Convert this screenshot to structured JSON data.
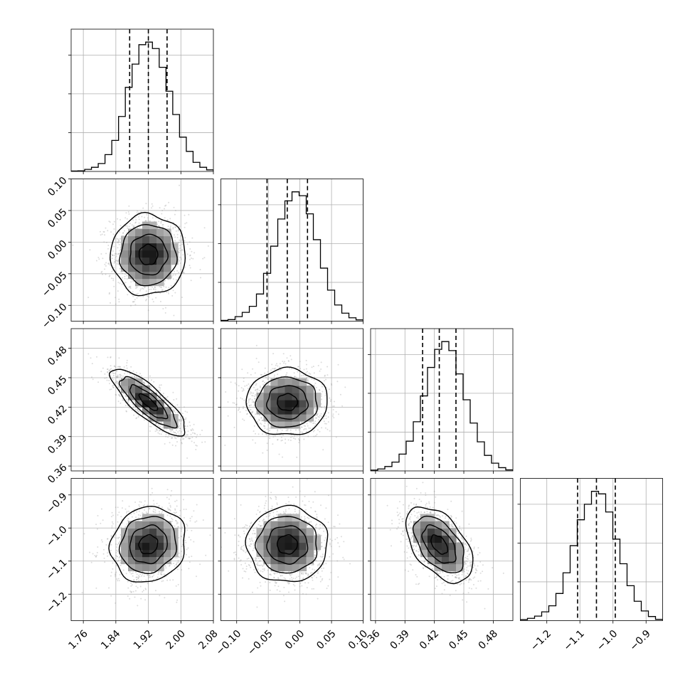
{
  "chart_data": {
    "type": "corner",
    "title": "",
    "parameters": [
      {
        "index": 0,
        "range": [
          1.73,
          2.08
        ],
        "ticks": [
          "1.76",
          "1.84",
          "1.92",
          "2.00",
          "2.08"
        ],
        "tick_values": [
          1.76,
          1.84,
          1.92,
          2.0,
          2.08
        ],
        "quantiles": [
          1.874,
          1.92,
          1.966
        ],
        "mean": 1.92,
        "std": 0.046
      },
      {
        "index": 1,
        "range": [
          -0.125,
          0.1
        ],
        "ticks": [
          "−0.10",
          "−0.05",
          "0.00",
          "0.05",
          "0.10"
        ],
        "tick_values": [
          -0.1,
          -0.05,
          0.0,
          0.05,
          0.1
        ],
        "quantiles": [
          -0.052,
          -0.02,
          0.012
        ],
        "mean": -0.02,
        "std": 0.032
      },
      {
        "index": 2,
        "range": [
          0.355,
          0.5
        ],
        "ticks": [
          "0.36",
          "0.39",
          "0.42",
          "0.45",
          "0.48"
        ],
        "tick_values": [
          0.36,
          0.39,
          0.42,
          0.45,
          0.48
        ],
        "quantiles": [
          0.408,
          0.425,
          0.442
        ],
        "mean": 0.425,
        "std": 0.017
      },
      {
        "index": 3,
        "range": [
          -1.28,
          -0.85
        ],
        "ticks": [
          "−1.2",
          "−1.1",
          "−1.0",
          "−0.9"
        ],
        "tick_values": [
          -1.2,
          -1.1,
          -1.0,
          -0.9
        ],
        "quantiles": [
          -1.107,
          -1.05,
          -0.993
        ],
        "mean": -1.05,
        "std": 0.057
      }
    ],
    "correlations": [
      [
        0,
        1,
        0.0
      ],
      [
        0,
        2,
        -0.82
      ],
      [
        0,
        3,
        0.1
      ],
      [
        1,
        2,
        0.0
      ],
      [
        1,
        3,
        0.0
      ],
      [
        2,
        3,
        -0.5
      ]
    ],
    "histograms": [
      [
        0.3,
        0.5,
        1.6,
        3.2,
        6.1,
        13.0,
        24.0,
        42.5,
        65.0,
        83.0,
        98.0,
        100.0,
        95.0,
        80.5,
        62.0,
        44.0,
        26.5,
        15.5,
        7.0,
        3.2,
        1.2
      ],
      [
        0.6,
        1.2,
        3.5,
        6.8,
        11.5,
        21.0,
        37.0,
        58.0,
        79.0,
        93.0,
        100.0,
        97.0,
        83.0,
        63.0,
        41.0,
        24.0,
        12.5,
        6.2,
        2.6,
        1.0
      ],
      [
        0.6,
        1.5,
        3.4,
        6.8,
        13.0,
        23.0,
        38.0,
        58.0,
        80.0,
        94.0,
        100.0,
        93.0,
        75.0,
        55.0,
        37.0,
        22.5,
        12.0,
        6.0,
        2.5,
        0.8
      ],
      [
        0.8,
        1.8,
        3.5,
        6.8,
        11.5,
        21.0,
        37.0,
        58.0,
        78.0,
        90.0,
        100.0,
        98.0,
        84.0,
        63.0,
        44.0,
        27.0,
        15.0,
        7.5,
        3.2,
        1.0
      ]
    ],
    "contour_levels_sigma": [
      0.5,
      1.0,
      1.5,
      2.0
    ],
    "grid": true,
    "legend": "none"
  }
}
